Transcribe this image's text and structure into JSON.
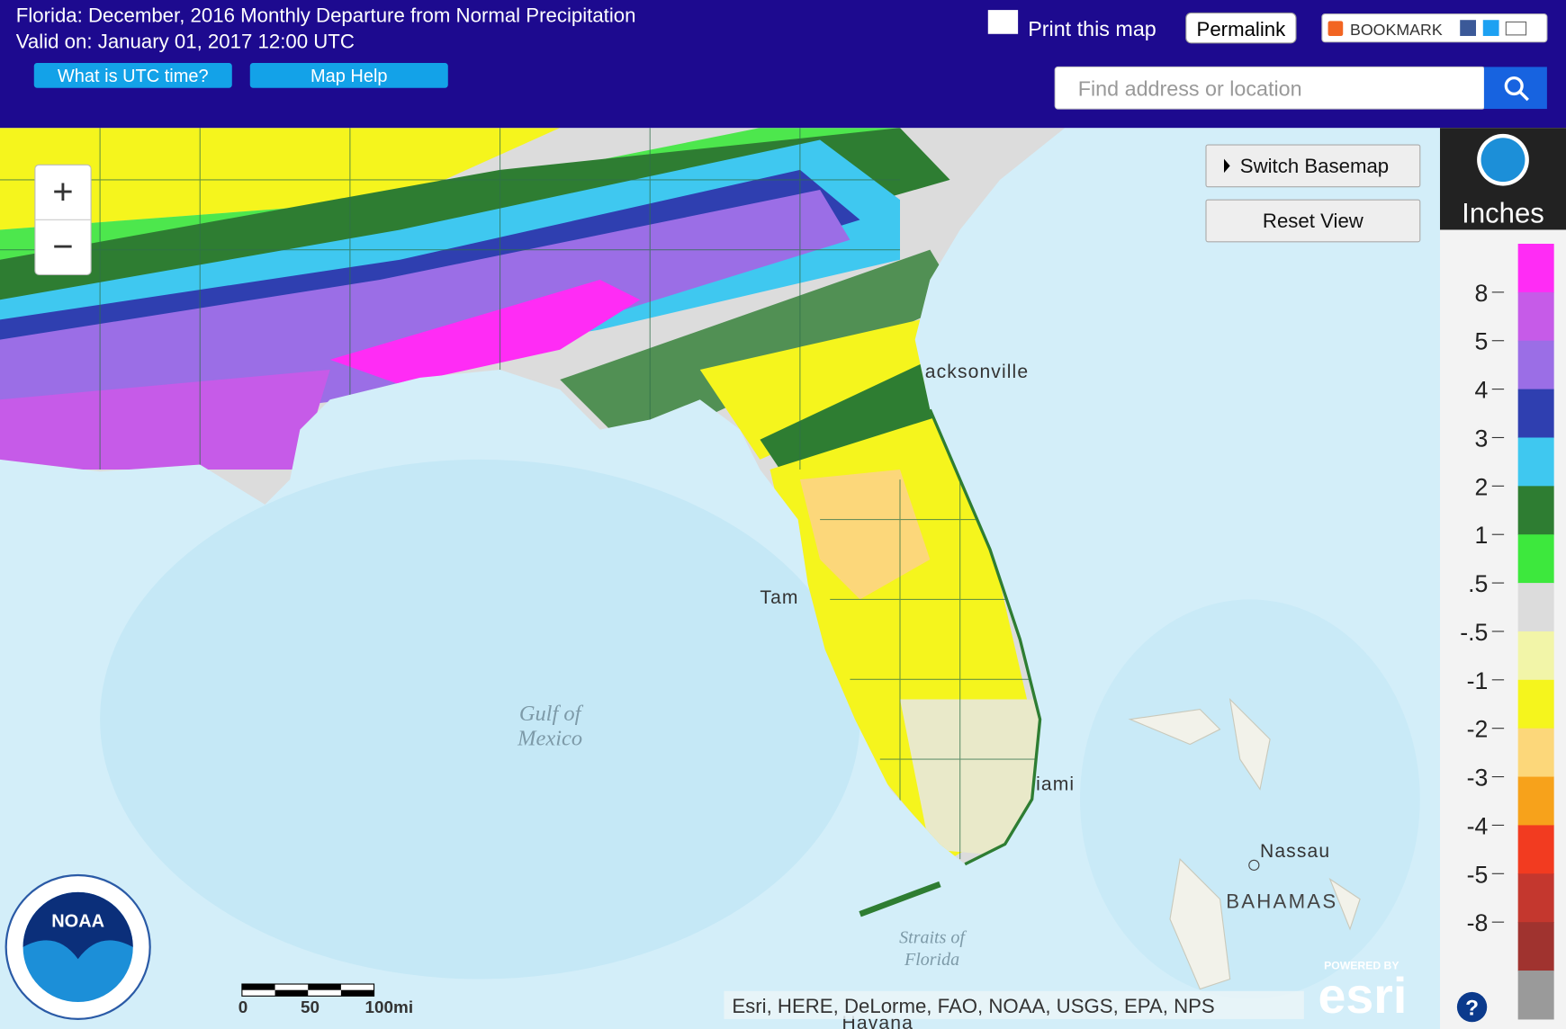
{
  "header": {
    "title": "Florida: December, 2016 Monthly Departure from Normal Precipitation",
    "valid": "Valid on: January 01, 2017 12:00 UTC",
    "buttons": [
      "What is UTC time?",
      "Map Help"
    ],
    "print": "Print this map",
    "permalink": "Permalink",
    "bookmark": "BOOKMARK",
    "search_placeholder": "Find address or location"
  },
  "map": {
    "controls": {
      "zoom_in": "+",
      "zoom_out": "−",
      "switch_basemap": "Switch Basemap",
      "reset_view": "Reset View"
    },
    "labels": {
      "jacksonville": "acksonville",
      "tampa": "Tam",
      "miami": "iami",
      "gulf": [
        "Gulf of",
        "Mexico"
      ],
      "straits": [
        "Straits of",
        "Florida"
      ],
      "nassau": "Nassau",
      "bahamas": "BAHAMAS",
      "havana": "Havana"
    },
    "scale": [
      "0",
      "50",
      "100mi"
    ],
    "attribution": "Esri, HERE, DeLorme, FAO, NOAA, USGS, EPA, NPS",
    "powered_by": "POWERED BY",
    "esri": "esri",
    "logo": "NOAA"
  },
  "legend": {
    "title": "Inches",
    "labels": [
      "8",
      "5",
      "4",
      "3",
      "2",
      "1",
      ".5",
      "-.5",
      "-1",
      "-2",
      "-3",
      "-4",
      "-5",
      "-8"
    ],
    "colors": [
      "#ff2cf5",
      "#c65be8",
      "#9b6ee6",
      "#2f3fb0",
      "#3fc8f0",
      "#2e7d32",
      "#3de83d",
      "#dcdcdc",
      "#f2f5a8",
      "#f5f51d",
      "#fcd77a",
      "#f7a21b",
      "#f23b20",
      "#c4372e",
      "#a0332f",
      "#9a9a9a"
    ],
    "help": "?"
  }
}
